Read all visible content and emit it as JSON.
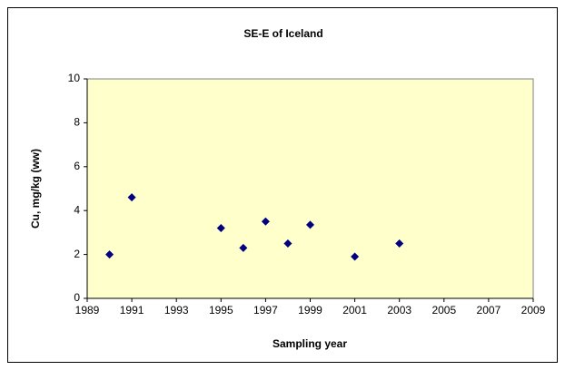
{
  "chart_data": {
    "type": "scatter",
    "title": "SE-E of Iceland",
    "x_label": "Sampling year",
    "y_label": "Cu, mg/kg (ww)",
    "series": [
      {
        "name": "Cu",
        "color": "#000080",
        "x": [
          1990,
          1991,
          1995,
          1996,
          1997,
          1998,
          1999,
          2001,
          2003
        ],
        "values": [
          2.0,
          4.6,
          3.2,
          2.3,
          3.5,
          2.5,
          3.35,
          1.9,
          2.5
        ]
      }
    ],
    "xlim": [
      1989,
      2009
    ],
    "xticks": [
      1989,
      1991,
      1993,
      1995,
      1997,
      1999,
      2001,
      2003,
      2005,
      2007,
      2009
    ],
    "ylim": [
      0,
      10
    ],
    "yticks": [
      0,
      2,
      4,
      6,
      8,
      10
    ],
    "plot_background": "#ffffcc",
    "grid": false
  }
}
